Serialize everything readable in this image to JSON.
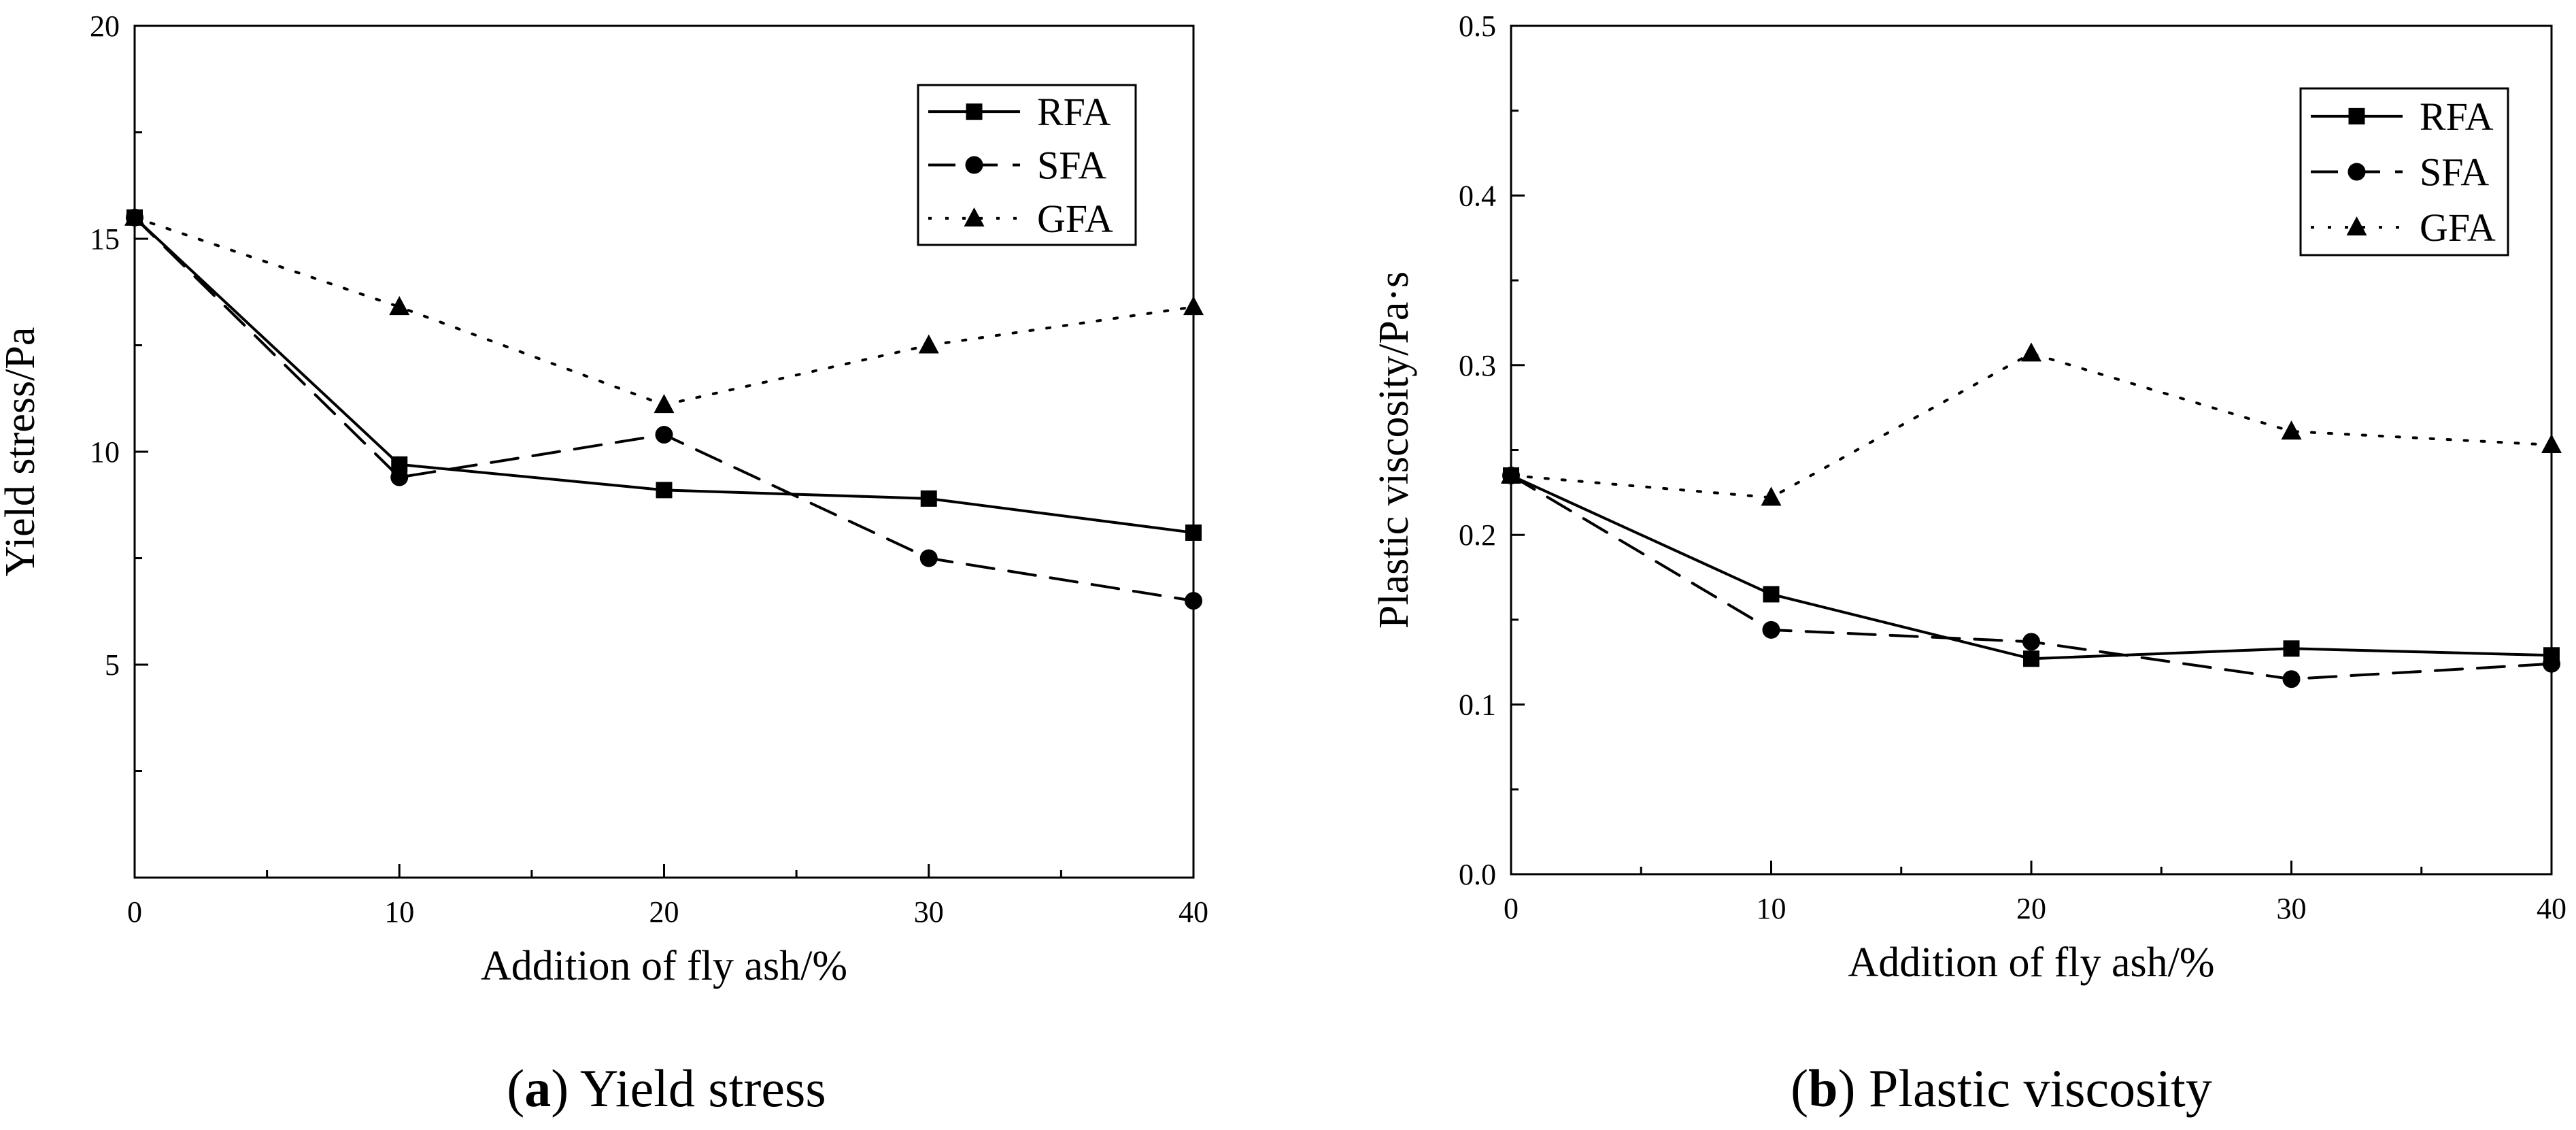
{
  "chart_data": [
    {
      "type": "line",
      "title": "",
      "xlabel": "Addition of fly ash/%",
      "ylabel": "Yield stress/Pa",
      "x": [
        0,
        10,
        20,
        30,
        40
      ],
      "xlim": [
        0,
        40
      ],
      "ylim": [
        0,
        20
      ],
      "xticks": [
        "0",
        "10",
        "20",
        "30",
        "40"
      ],
      "yticks": [
        "5",
        "10",
        "15",
        "20"
      ],
      "legend_position": "top-right",
      "series": [
        {
          "name": "RFA",
          "values": [
            15.5,
            9.7,
            9.1,
            8.9,
            8.1
          ],
          "style": "solid",
          "marker": "square"
        },
        {
          "name": "SFA",
          "values": [
            15.5,
            9.4,
            10.4,
            7.5,
            6.5
          ],
          "style": "dashed",
          "marker": "circle"
        },
        {
          "name": "GFA",
          "values": [
            15.5,
            13.4,
            11.1,
            12.5,
            13.4
          ],
          "style": "dotted",
          "marker": "triangle"
        }
      ],
      "caption_letter": "a",
      "caption_text": "Yield stress"
    },
    {
      "type": "line",
      "title": "",
      "xlabel": "Addition of fly ash/%",
      "ylabel": "Plastic viscosity/Pa·s",
      "x": [
        0,
        10,
        20,
        30,
        40
      ],
      "xlim": [
        0,
        40
      ],
      "ylim": [
        0,
        0.5
      ],
      "xticks": [
        "0",
        "10",
        "20",
        "30",
        "40"
      ],
      "yticks": [
        "0.0",
        "0.1",
        "0.2",
        "0.3",
        "0.4",
        "0.5"
      ],
      "legend_position": "top-right",
      "series": [
        {
          "name": "RFA",
          "values": [
            0.235,
            0.165,
            0.127,
            0.133,
            0.129
          ],
          "style": "solid",
          "marker": "square"
        },
        {
          "name": "SFA",
          "values": [
            0.235,
            0.144,
            0.137,
            0.115,
            0.124
          ],
          "style": "dashed",
          "marker": "circle"
        },
        {
          "name": "GFA",
          "values": [
            0.235,
            0.222,
            0.307,
            0.261,
            0.253
          ],
          "style": "dotted",
          "marker": "triangle"
        }
      ],
      "caption_letter": "b",
      "caption_text": "Plastic viscosity"
    }
  ]
}
